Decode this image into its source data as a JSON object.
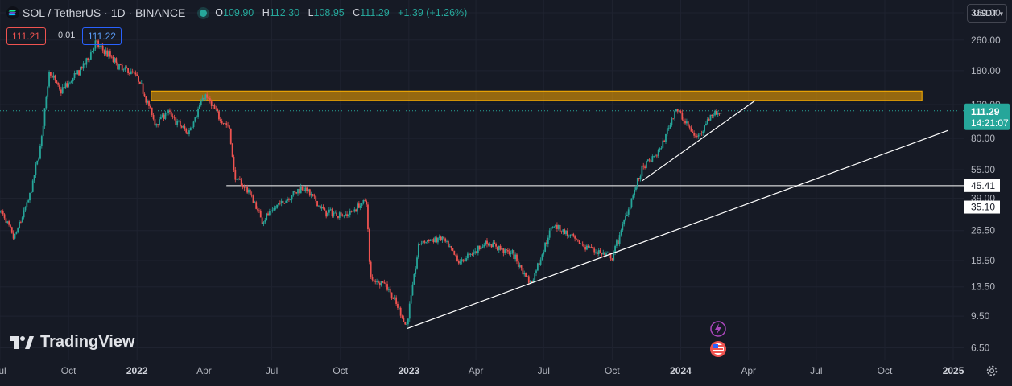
{
  "header": {
    "symbol": "SOL / TetherUS · 1D · BINANCE",
    "o_label": "O",
    "o": "109.90",
    "h_label": "H",
    "h": "112.30",
    "l_label": "L",
    "l": "108.95",
    "c_label": "C",
    "c": "111.29",
    "change": "+1.39 (+1.26%)",
    "status_color": "#26a69a"
  },
  "quote": {
    "bid": "111.21",
    "spread": "0.01",
    "ask": "111.22"
  },
  "currency_button": {
    "label": "USDT"
  },
  "logo": {
    "text": "TradingView"
  },
  "price_axis": {
    "ticks": [
      "360.00",
      "260.00",
      "180.00",
      "120.00",
      "80.00",
      "55.00",
      "39.00",
      "26.50",
      "18.50",
      "13.50",
      "9.50",
      "6.50"
    ],
    "last_price_label": "111.29",
    "countdown": "14:21:07",
    "level_labels": [
      "45.41",
      "35.10"
    ]
  },
  "time_axis": {
    "ticks": [
      {
        "label": "Jul",
        "major": false
      },
      {
        "label": "Oct",
        "major": false
      },
      {
        "label": "2022",
        "major": true
      },
      {
        "label": "Apr",
        "major": false
      },
      {
        "label": "Jul",
        "major": false
      },
      {
        "label": "Oct",
        "major": false
      },
      {
        "label": "2023",
        "major": true
      },
      {
        "label": "Apr",
        "major": false
      },
      {
        "label": "Jul",
        "major": false
      },
      {
        "label": "Oct",
        "major": false
      },
      {
        "label": "2024",
        "major": true
      },
      {
        "label": "Apr",
        "major": false
      },
      {
        "label": "Jul",
        "major": false
      },
      {
        "label": "Oct",
        "major": false
      },
      {
        "label": "2025",
        "major": true
      }
    ]
  },
  "chart_data": {
    "type": "candlestick",
    "title": "SOL / TetherUS · 1D · BINANCE",
    "scale": "log",
    "ylim": [
      5.6,
      420
    ],
    "xlim": [
      "2021-07-01",
      "2025-01-15"
    ],
    "up_color": "#26a69a",
    "down_color": "#ef5350",
    "grid": true,
    "price_series_approx": [
      [
        "2021-07-01",
        34
      ],
      [
        "2021-07-20",
        24
      ],
      [
        "2021-08-10",
        40
      ],
      [
        "2021-08-25",
        75
      ],
      [
        "2021-09-05",
        180
      ],
      [
        "2021-09-20",
        140
      ],
      [
        "2021-10-05",
        160
      ],
      [
        "2021-10-25",
        200
      ],
      [
        "2021-11-06",
        250
      ],
      [
        "2021-11-25",
        215
      ],
      [
        "2021-12-10",
        185
      ],
      [
        "2021-12-28",
        175
      ],
      [
        "2022-01-10",
        140
      ],
      [
        "2022-01-25",
        95
      ],
      [
        "2022-02-10",
        110
      ],
      [
        "2022-03-10",
        85
      ],
      [
        "2022-04-02",
        135
      ],
      [
        "2022-04-20",
        105
      ],
      [
        "2022-05-05",
        90
      ],
      [
        "2022-05-12",
        50
      ],
      [
        "2022-06-01",
        42
      ],
      [
        "2022-06-18",
        30
      ],
      [
        "2022-07-10",
        36
      ],
      [
        "2022-08-12",
        45
      ],
      [
        "2022-09-10",
        33
      ],
      [
        "2022-10-10",
        32
      ],
      [
        "2022-11-05",
        38
      ],
      [
        "2022-11-10",
        15
      ],
      [
        "2022-12-01",
        14
      ],
      [
        "2022-12-29",
        8.5
      ],
      [
        "2023-01-15",
        23
      ],
      [
        "2023-02-15",
        24
      ],
      [
        "2023-03-10",
        18
      ],
      [
        "2023-04-15",
        23
      ],
      [
        "2023-05-20",
        20
      ],
      [
        "2023-06-14",
        14
      ],
      [
        "2023-07-14",
        29
      ],
      [
        "2023-08-15",
        23
      ],
      [
        "2023-10-01",
        19
      ],
      [
        "2023-10-25",
        37
      ],
      [
        "2023-11-10",
        55
      ],
      [
        "2023-12-05",
        70
      ],
      [
        "2023-12-25",
        115
      ],
      [
        "2024-01-22",
        80
      ],
      [
        "2024-02-10",
        105
      ],
      [
        "2024-02-25",
        111.29
      ]
    ],
    "horizontal_levels": [
      45.41,
      35.1
    ],
    "resistance_zone": [
      126,
      141
    ],
    "last_price": 111.29,
    "trendlines": [
      {
        "from": [
          "2022-12-30",
          8.2
        ],
        "to": [
          "2024-12-25",
          88
        ]
      },
      {
        "from": [
          "2023-11-10",
          48
        ],
        "to": [
          "2024-04-10",
          126
        ]
      }
    ]
  }
}
